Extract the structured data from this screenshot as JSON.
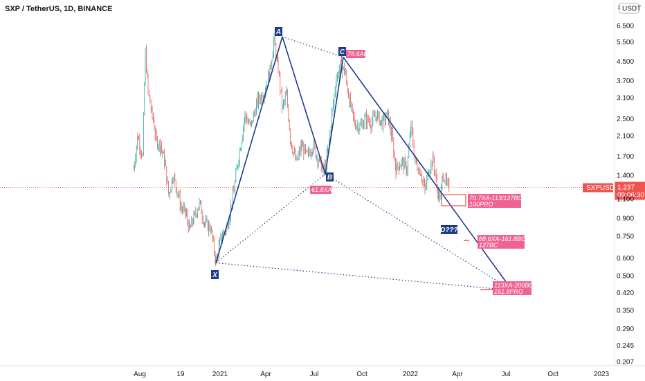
{
  "header": {
    "title": "SXP / TetherUS, 1D, BINANCE"
  },
  "axis": {
    "currency": "USDT",
    "currency_top_label": "8",
    "symbol": "SXPUSDT",
    "last_price": "1.237",
    "countdown": "09:06:30"
  },
  "chart_data": {
    "type": "line",
    "yscale": "log",
    "ylim": [
      0.2,
      8
    ],
    "y_ticks": [
      "6.500",
      "5.500",
      "4.500",
      "3.700",
      "3.100",
      "2.500",
      "2.100",
      "1.700",
      "1.400",
      "1.100",
      "0.900",
      "0.750",
      "0.600",
      "0.500",
      "0.420",
      "0.350",
      "0.290",
      "0.245",
      "0.207"
    ],
    "x_ticks": [
      "Aug",
      "19",
      "2021",
      "Apr",
      "Jul",
      "Oct",
      "2022",
      "Apr",
      "Jul",
      "Oct",
      "2023"
    ],
    "series": [
      {
        "x": [
          "2020-08",
          "2020-08",
          "2020-08",
          "2020-09",
          "2020-10",
          "2020-11",
          "2020-12",
          "2020-12",
          "2021-01",
          "2021-02",
          "2021-03",
          "2021-04",
          "2021-05",
          "2021-05",
          "2021-06",
          "2021-07",
          "2021-07",
          "2021-08",
          "2021-09",
          "2021-10",
          "2021-11",
          "2021-12",
          "2022-01",
          "2022-02",
          "2022-03"
        ],
        "y": [
          1.5,
          2.1,
          4.9,
          3.3,
          1.8,
          1.2,
          0.8,
          0.58,
          0.9,
          2.2,
          3.1,
          4.6,
          5.8,
          3.2,
          1.9,
          1.8,
          1.4,
          3.8,
          4.6,
          2.5,
          2.5,
          1.5,
          1.7,
          1.4,
          1.23
        ]
      }
    ],
    "harmonic_points": [
      {
        "label": "X",
        "price": 0.57
      },
      {
        "label": "A",
        "price": 5.8
      },
      {
        "label": "B",
        "price": 1.42
      },
      {
        "label": "C",
        "price": 4.7
      },
      {
        "label": "D???",
        "price": 0.82
      }
    ],
    "annotations": {
      "ab_retrace": "78.6AB",
      "xa_retrace": "61.8XA",
      "targets": [
        {
          "line1": "70.7XA-113/127BC",
          "line2": "100PRO"
        },
        {
          "line1": "88.6XA-161.8BC",
          "line2": "127BC"
        },
        {
          "line1": "113XA-200BC",
          "line2": "161.8PRO"
        }
      ]
    }
  }
}
